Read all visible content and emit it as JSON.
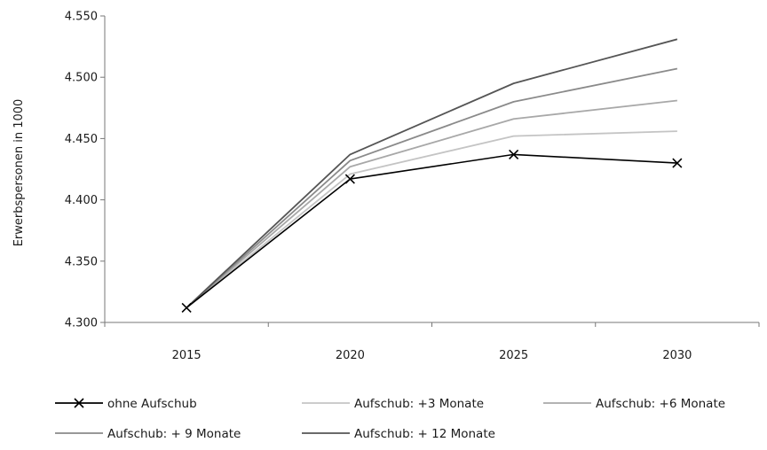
{
  "chart_data": {
    "type": "line",
    "title": "",
    "xlabel": "",
    "ylabel": "Erwerbspersonen in 1000",
    "x": [
      "2015",
      "2020",
      "2025",
      "2030"
    ],
    "ylim": [
      4300,
      4550
    ],
    "yticks": [
      4300,
      4350,
      4400,
      4450,
      4500,
      4550
    ],
    "ytick_labels": [
      "4.300",
      "4.350",
      "4.400",
      "4.450",
      "4.500",
      "4.550"
    ],
    "grid": false,
    "legend_position": "bottom",
    "series": [
      {
        "name": "ohne Aufschub",
        "values": [
          4312,
          4417,
          4437,
          4430
        ],
        "color": "#000000",
        "marker": "x"
      },
      {
        "name": "Aufschub: +3 Monate",
        "values": [
          4312,
          4421,
          4452,
          4456
        ],
        "color": "#c4c4c4",
        "marker": "none"
      },
      {
        "name": "Aufschub: +6 Monate",
        "values": [
          4312,
          4427,
          4466,
          4481
        ],
        "color": "#a8a8a8",
        "marker": "none"
      },
      {
        "name": "Aufschub: + 9 Monate",
        "values": [
          4312,
          4432,
          4480,
          4507
        ],
        "color": "#8a8a8a",
        "marker": "none"
      },
      {
        "name": "Aufschub: + 12 Monate",
        "values": [
          4312,
          4437,
          4495,
          4531
        ],
        "color": "#555555",
        "marker": "none"
      }
    ]
  }
}
